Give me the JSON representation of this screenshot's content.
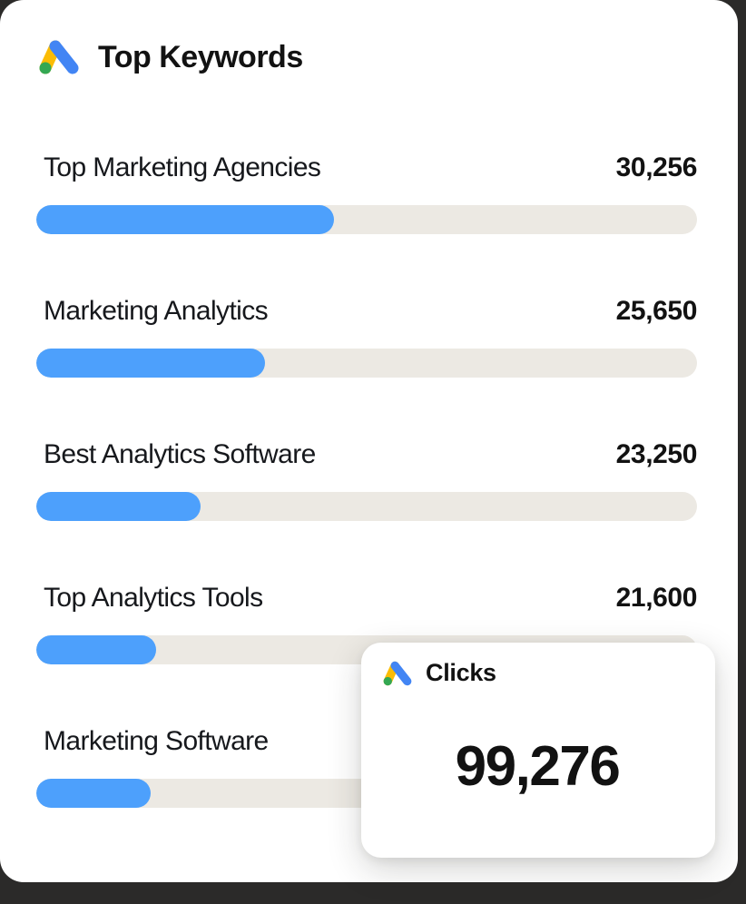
{
  "page": {
    "background_color": "#2B2A29",
    "card_color": "#FFFFFF"
  },
  "colors": {
    "bar_fill": "#4DA0FC",
    "bar_track": "#ECE9E3",
    "text": "#121212",
    "ads_logo_blue": "#4285F4",
    "ads_logo_yellow": "#FBBC04",
    "ads_logo_green": "#34A853"
  },
  "header": {
    "title": "Top Keywords",
    "icon": "google-ads-icon"
  },
  "rows": [
    {
      "label": "Top Marketing Agencies",
      "value": "30,256",
      "percent": 45.1
    },
    {
      "label": "Marketing Analytics",
      "value": "25,650",
      "percent": 34.6
    },
    {
      "label": "Best Analytics Software",
      "value": "23,250",
      "percent": 24.9
    },
    {
      "label": "Top Analytics Tools",
      "value": "21,600",
      "percent": 18.1
    },
    {
      "label": "Marketing Software",
      "value": "",
      "percent": 17.3
    }
  ],
  "kpi_card": {
    "label": "Clicks",
    "value": "99,276",
    "icon": "google-ads-icon"
  },
  "chart_data": {
    "type": "bar",
    "orientation": "horizontal",
    "title": "Top Keywords",
    "categories": [
      "Top Marketing Agencies",
      "Marketing Analytics",
      "Best Analytics Software",
      "Top Analytics Tools",
      "Marketing Software"
    ],
    "values": [
      30256,
      25650,
      23250,
      21600,
      null
    ],
    "value_labels": [
      "30,256",
      "25,650",
      "23,250",
      "21,600",
      null
    ],
    "bar_fill_percent": [
      45.1,
      34.6,
      24.9,
      18.1,
      17.3
    ],
    "legend": "none",
    "grid": false,
    "kpi_overlay": {
      "label": "Clicks",
      "value": 99276,
      "value_label": "99,276"
    }
  }
}
